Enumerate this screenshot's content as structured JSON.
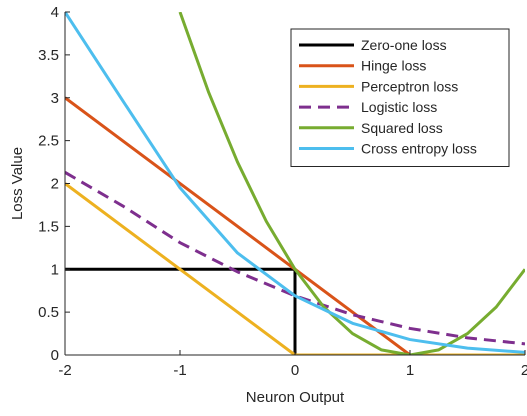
{
  "chart_data": {
    "type": "line",
    "title": "",
    "xlabel": "Neuron Output",
    "ylabel": "Loss Value",
    "xlim": [
      -2,
      2
    ],
    "ylim": [
      0,
      4
    ],
    "xticks": [
      -2,
      -1,
      0,
      1,
      2
    ],
    "yticks": [
      0,
      0.5,
      1,
      1.5,
      2,
      2.5,
      3,
      3.5,
      4
    ],
    "grid": false,
    "legend_position": "top-right",
    "series": [
      {
        "name": "Zero-one loss",
        "color": "#000000",
        "dash": "solid",
        "x": [
          -2,
          0,
          0,
          2
        ],
        "y": [
          1,
          1,
          0,
          0
        ]
      },
      {
        "name": "Hinge loss",
        "color": "#D95319",
        "dash": "solid",
        "x": [
          -2,
          1,
          2
        ],
        "y": [
          3,
          0,
          0
        ]
      },
      {
        "name": "Perceptron loss",
        "color": "#EDB120",
        "dash": "solid",
        "x": [
          -2,
          0,
          2
        ],
        "y": [
          2,
          0,
          0
        ]
      },
      {
        "name": "Logistic loss",
        "color": "#7E2F8E",
        "dash": "dashed",
        "x": [
          -2,
          -1.5,
          -1,
          -0.5,
          0,
          0.5,
          1,
          1.5,
          2
        ],
        "y": [
          2.13,
          1.74,
          1.31,
          0.97,
          0.69,
          0.47,
          0.31,
          0.2,
          0.13
        ]
      },
      {
        "name": "Squared loss",
        "color": "#77AC30",
        "dash": "solid",
        "x": [
          -1,
          -0.75,
          -0.5,
          -0.25,
          0,
          0.25,
          0.5,
          0.75,
          1,
          1.25,
          1.5,
          1.75,
          2
        ],
        "y": [
          4,
          3.06,
          2.25,
          1.56,
          1,
          0.56,
          0.25,
          0.06,
          0,
          0.06,
          0.25,
          0.56,
          1
        ]
      },
      {
        "name": "Cross entropy loss",
        "color": "#4DBEEE",
        "dash": "solid",
        "x": [
          -2,
          -1.5,
          -1,
          -0.5,
          0,
          0.5,
          1,
          1.5,
          2
        ],
        "y": [
          4,
          2.97,
          1.95,
          1.19,
          0.69,
          0.37,
          0.18,
          0.08,
          0.03
        ]
      }
    ]
  }
}
